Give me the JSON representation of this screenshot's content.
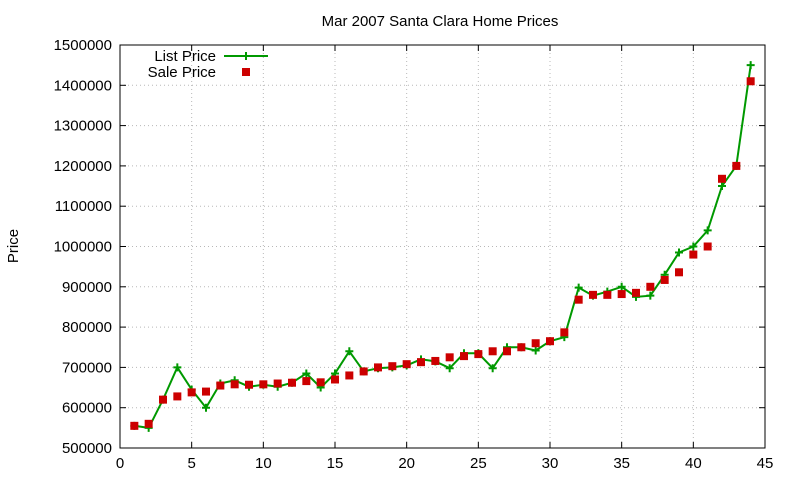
{
  "chart_data": {
    "type": "line",
    "title": "Mar 2007 Santa Clara Home Prices",
    "xlabel": "",
    "ylabel": "Price",
    "xlim": [
      0,
      45
    ],
    "ylim": [
      500000,
      1500000
    ],
    "xticks": [
      0,
      5,
      10,
      15,
      20,
      25,
      30,
      35,
      40,
      45
    ],
    "yticks": [
      500000,
      600000,
      700000,
      800000,
      900000,
      1000000,
      1100000,
      1200000,
      1300000,
      1400000,
      1500000
    ],
    "grid": true,
    "legend_position": "top-left",
    "x": [
      1,
      2,
      3,
      4,
      5,
      6,
      7,
      8,
      9,
      10,
      11,
      12,
      13,
      14,
      15,
      16,
      17,
      18,
      19,
      20,
      21,
      22,
      23,
      24,
      25,
      26,
      27,
      28,
      29,
      30,
      31,
      32,
      33,
      34,
      35,
      36,
      37,
      38,
      39,
      40,
      41,
      42,
      43,
      44
    ],
    "series": [
      {
        "name": "List Price",
        "style": "line-plus",
        "color": "#009900",
        "values": [
          555000,
          550000,
          620000,
          700000,
          645000,
          600000,
          660000,
          668000,
          652000,
          657000,
          652000,
          662000,
          685000,
          650000,
          685000,
          740000,
          690000,
          698000,
          700000,
          705000,
          720000,
          715000,
          698000,
          735000,
          735000,
          698000,
          750000,
          750000,
          742000,
          765000,
          775000,
          898000,
          878000,
          888000,
          900000,
          875000,
          878000,
          930000,
          985000,
          1000000,
          1040000,
          1150000,
          1200000,
          1450000
        ]
      },
      {
        "name": "Sale Price",
        "style": "square",
        "color": "#cc0000",
        "values": [
          555000,
          560000,
          620000,
          628000,
          638000,
          640000,
          655000,
          658000,
          657000,
          658000,
          660000,
          662000,
          666000,
          663000,
          670000,
          680000,
          690000,
          700000,
          703000,
          708000,
          713000,
          716000,
          725000,
          728000,
          733000,
          740000,
          740000,
          750000,
          760000,
          765000,
          787000,
          868000,
          880000,
          880000,
          882000,
          885000,
          900000,
          917000,
          936000,
          980000,
          1000000,
          1168000,
          1200000,
          1410000
        ]
      }
    ]
  }
}
